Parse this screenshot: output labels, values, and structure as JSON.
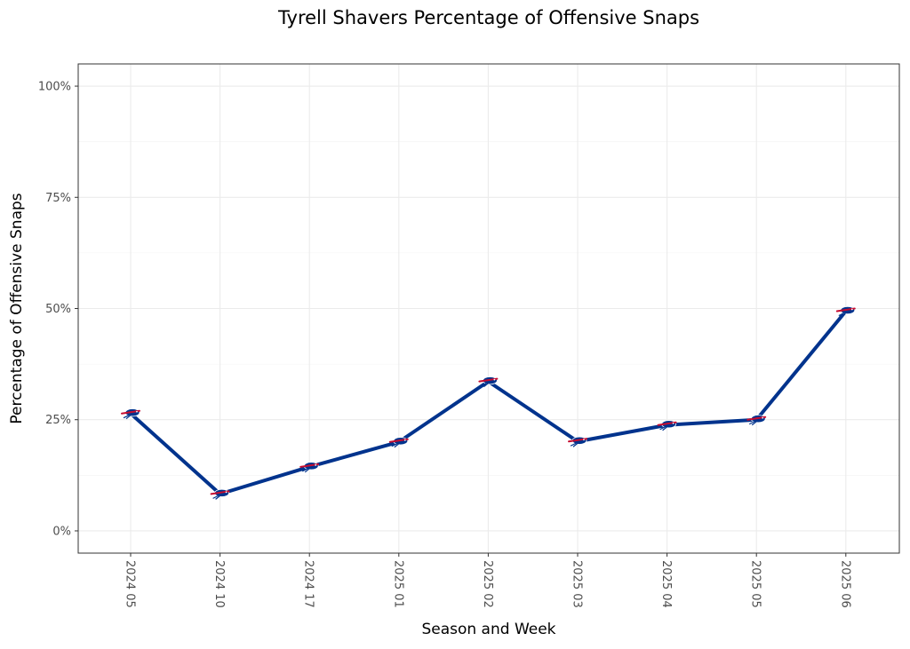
{
  "chart_data": {
    "type": "line",
    "title": "Tyrell Shavers Percentage of Offensive Snaps",
    "xlabel": "Season and Week",
    "ylabel": "Percentage of Offensive Snaps",
    "categories": [
      "2024 05",
      "2024 10",
      "2024 17",
      "2025 01",
      "2025 02",
      "2025 03",
      "2025 04",
      "2025 05",
      "2025 06"
    ],
    "values": [
      26.4,
      8.3,
      14.4,
      20.0,
      33.6,
      20.1,
      23.8,
      25.0,
      49.4
    ],
    "y_ticks": [
      0,
      25,
      50,
      75,
      100
    ],
    "y_tick_labels": [
      "0%",
      "25%",
      "50%",
      "75%",
      "100%"
    ],
    "ylim": [
      -5,
      105
    ],
    "grid": true,
    "marker": "bills-logo-icon",
    "colors": {
      "line": "#00338D",
      "marker_blue": "#00338D",
      "marker_red": "#C60C30"
    }
  }
}
